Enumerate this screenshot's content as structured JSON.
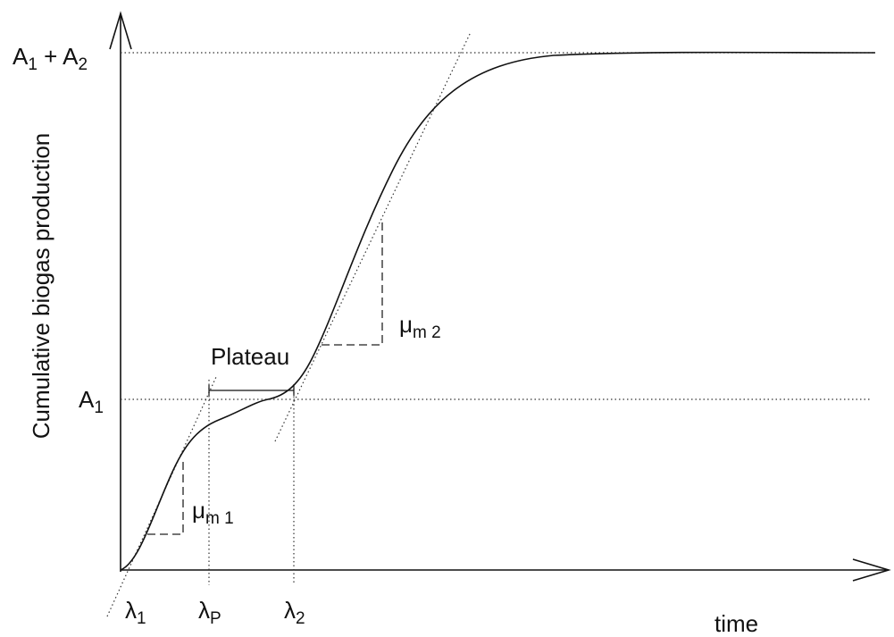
{
  "axes": {
    "y_label": "Cumulative biogas production",
    "x_label": "time"
  },
  "levels": [
    [
      {
        "text": "A"
      },
      {
        "sub": "1"
      },
      {
        "text": " + A"
      },
      {
        "sub": "2"
      }
    ],
    [
      {
        "text": "A"
      },
      {
        "sub": "1"
      }
    ]
  ],
  "lag_labels": [
    [
      {
        "text": "λ"
      },
      {
        "sub": "1"
      }
    ],
    [
      {
        "text": "λ"
      },
      {
        "sub": "P"
      }
    ],
    [
      {
        "text": "λ"
      },
      {
        "sub": "2"
      }
    ]
  ],
  "rate_labels": [
    [
      {
        "text": "μ"
      },
      {
        "sub": "m 1"
      }
    ],
    [
      {
        "text": "μ"
      },
      {
        "sub": "m 2"
      }
    ]
  ],
  "plateau_label": "Plateau"
}
